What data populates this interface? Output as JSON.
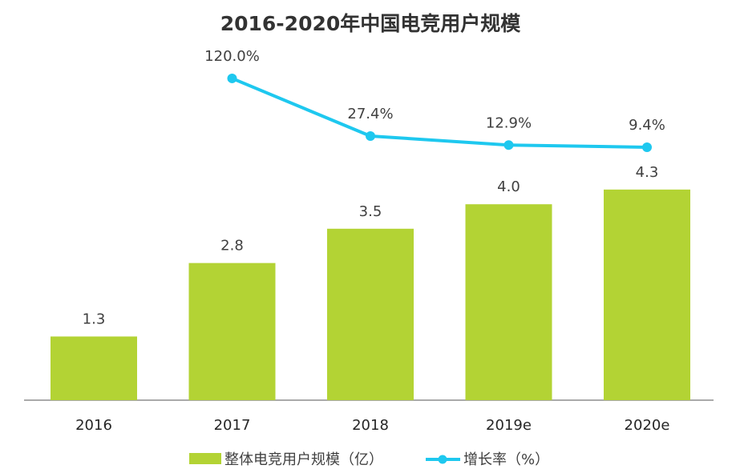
{
  "chart_data": {
    "type": "bar+line",
    "title": "2016-2020年中国电竞用户规模",
    "categories": [
      "2016",
      "2017",
      "2018",
      "2019e",
      "2020e"
    ],
    "series": [
      {
        "name": "整体电竞用户规模（亿）",
        "type": "bar",
        "color": "#b3d334",
        "values": [
          1.3,
          2.8,
          3.5,
          4.0,
          4.3
        ],
        "labels": [
          "1.3",
          "2.8",
          "3.5",
          "4.0",
          "4.3"
        ]
      },
      {
        "name": "增长率（%）",
        "type": "line",
        "color": "#1ec8ef",
        "values": [
          null,
          120.0,
          27.4,
          12.9,
          9.4
        ],
        "labels": [
          "",
          "120.0%",
          "27.4%",
          "12.9%",
          "9.4%"
        ]
      }
    ],
    "legend": "bottom",
    "grid": false
  }
}
